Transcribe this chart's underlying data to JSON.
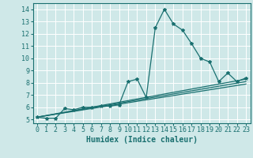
{
  "xlabel": "Humidex (Indice chaleur)",
  "background_color": "#cfe8e8",
  "grid_color": "#ffffff",
  "line_color": "#1a7070",
  "xlim": [
    -0.5,
    23.5
  ],
  "ylim": [
    4.7,
    14.5
  ],
  "xticks": [
    0,
    1,
    2,
    3,
    4,
    5,
    6,
    7,
    8,
    9,
    10,
    11,
    12,
    13,
    14,
    15,
    16,
    17,
    18,
    19,
    20,
    21,
    22,
    23
  ],
  "yticks": [
    5,
    6,
    7,
    8,
    9,
    10,
    11,
    12,
    13,
    14
  ],
  "series": [
    {
      "x": [
        0,
        1,
        2,
        3,
        4,
        5,
        6,
        7,
        8,
        9,
        10,
        11,
        12,
        13,
        14,
        15,
        16,
        17,
        18,
        19,
        20,
        21,
        22,
        23
      ],
      "y": [
        5.2,
        5.1,
        5.1,
        5.9,
        5.8,
        6.0,
        6.0,
        6.1,
        6.1,
        6.2,
        8.1,
        8.3,
        6.8,
        12.5,
        14.0,
        12.8,
        12.3,
        11.2,
        10.0,
        9.7,
        8.1,
        8.8,
        8.1,
        8.4
      ],
      "style": "line_marker"
    },
    {
      "x": [
        0,
        23
      ],
      "y": [
        5.2,
        8.3
      ],
      "style": "line_only"
    },
    {
      "x": [
        0,
        23
      ],
      "y": [
        5.2,
        8.1
      ],
      "style": "line_only"
    },
    {
      "x": [
        0,
        23
      ],
      "y": [
        5.2,
        7.9
      ],
      "style": "line_only"
    }
  ],
  "marker": "*",
  "marker_size": 3,
  "line_width": 0.9,
  "xlabel_fontsize": 7,
  "tick_fontsize": 6
}
